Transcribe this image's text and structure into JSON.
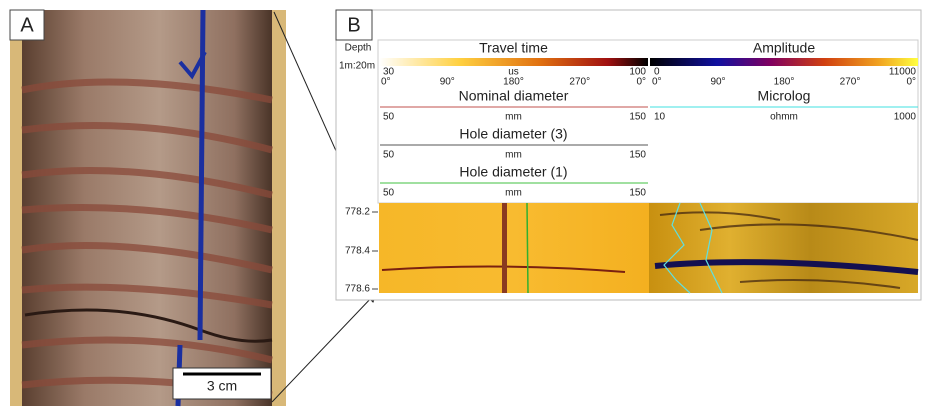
{
  "panel_a": {
    "label": "A",
    "scale_bar": "3 cm"
  },
  "panel_b": {
    "label": "B",
    "depth_header": "Depth",
    "scale": "1m:20m",
    "tracks": [
      {
        "title": "Travel time",
        "min": "30",
        "unit": "us",
        "max": "100",
        "azimuths": [
          "0°",
          "90°",
          "180°",
          "270°",
          "0°"
        ]
      },
      {
        "title": "Amplitude",
        "min": "0",
        "max": "11000",
        "azimuths": [
          "0°",
          "90°",
          "180°",
          "270°",
          "0°"
        ]
      }
    ],
    "curves": [
      {
        "title": "Nominal diameter",
        "min": "50",
        "unit": "mm",
        "max": "150"
      },
      {
        "title": "Microlog",
        "min": "10",
        "unit": "ohmm",
        "max": "1000"
      },
      {
        "title": "Hole diameter (3)",
        "min": "50",
        "unit": "mm",
        "max": "150"
      },
      {
        "title": "Hole diameter (1)",
        "min": "50",
        "unit": "mm",
        "max": "150"
      }
    ],
    "depth_labels": [
      "778.2",
      "778.4",
      "778.6"
    ]
  }
}
